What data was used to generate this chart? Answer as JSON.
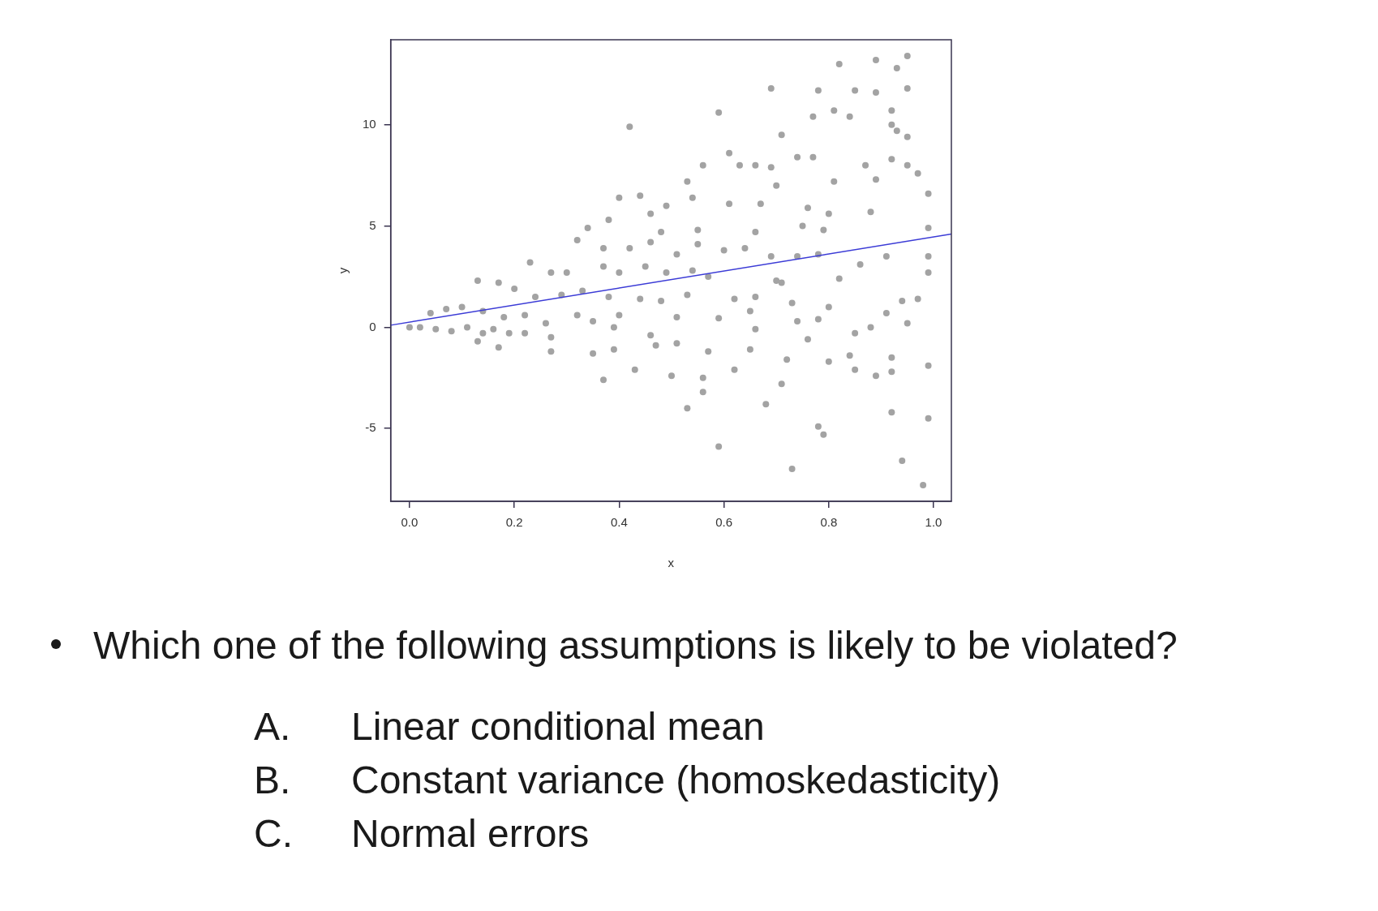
{
  "chart_data": {
    "type": "scatter",
    "xlabel": "x",
    "ylabel": "y",
    "xlim": [
      -0.036,
      1.034
    ],
    "ylim": [
      -8.6,
      14.2
    ],
    "xticks": [
      {
        "value": 0,
        "label": "0.0"
      },
      0.2,
      0.4,
      0.6,
      0.8,
      {
        "value": 1,
        "label": "1.0"
      }
    ],
    "yticks": [
      -5,
      0,
      5,
      10
    ],
    "annotations": [
      "Which one of the following assumptions is likely to be violated?",
      "A.\tLinear conditional mean",
      "B.\tConstant variance (homoskedasticity)",
      "C.\tNormal errors"
    ],
    "series": [
      {
        "color": "#a3a3a3",
        "marker": "circle",
        "x": [
          0.42,
          0.59,
          0.69,
          0.82,
          0.89,
          0.95,
          0.93,
          0.78,
          0.85,
          0.89,
          0.95,
          0.81,
          0.84,
          0.92,
          0.71,
          0.77,
          0.92,
          0.93,
          0.95,
          0.61,
          0.56,
          0.63,
          0.66,
          0.69,
          0.74,
          0.77,
          0.87,
          0.92,
          0.95,
          0.97,
          0.53,
          0.7,
          0.81,
          0.89,
          0.99,
          0.4,
          0.44,
          0.49,
          0.54,
          0.61,
          0.67,
          0.76,
          0.8,
          0.88,
          0.34,
          0.38,
          0.46,
          0.48,
          0.55,
          0.66,
          0.75,
          0.79,
          0.99,
          0.32,
          0.37,
          0.42,
          0.46,
          0.51,
          0.55,
          0.6,
          0.64,
          0.69,
          0.74,
          0.78,
          0.86,
          0.91,
          0.99,
          0.23,
          0.27,
          0.3,
          0.37,
          0.4,
          0.45,
          0.49,
          0.54,
          0.57,
          0.7,
          0.71,
          0.82,
          0.99,
          0.13,
          0.17,
          0.2,
          0.24,
          0.29,
          0.33,
          0.38,
          0.44,
          0.48,
          0.53,
          0.62,
          0.66,
          0.73,
          0.8,
          0.94,
          0.97,
          0.04,
          0.07,
          0.1,
          0.14,
          0.18,
          0.22,
          0.26,
          0.32,
          0.35,
          0.4,
          0.51,
          0.59,
          0.65,
          0.74,
          0.78,
          0.91,
          0.95,
          0.0,
          0.02,
          0.05,
          0.08,
          0.11,
          0.14,
          0.16,
          0.19,
          0.22,
          0.27,
          0.39,
          0.46,
          0.66,
          0.85,
          0.88,
          0.13,
          0.17,
          0.27,
          0.35,
          0.39,
          0.47,
          0.51,
          0.57,
          0.65,
          0.72,
          0.76,
          0.84,
          0.92,
          0.99,
          0.37,
          0.43,
          0.5,
          0.56,
          0.62,
          0.71,
          0.8,
          0.85,
          0.89,
          0.92,
          0.53,
          0.56,
          0.68,
          0.92,
          0.99,
          0.78,
          0.79,
          0.59,
          0.73,
          0.94,
          0.98
        ],
        "values": [
          9.9,
          10.6,
          11.8,
          13.0,
          13.2,
          13.4,
          12.8,
          11.7,
          11.7,
          11.6,
          11.8,
          10.7,
          10.4,
          10.7,
          9.5,
          10.4,
          10.0,
          9.7,
          9.4,
          8.6,
          8.0,
          8.0,
          8.0,
          7.9,
          8.4,
          8.4,
          8.0,
          8.3,
          8.0,
          7.6,
          7.2,
          7.0,
          7.2,
          7.3,
          6.6,
          6.4,
          6.5,
          6.0,
          6.4,
          6.1,
          6.1,
          5.9,
          5.6,
          5.7,
          4.9,
          5.3,
          5.6,
          4.7,
          4.8,
          4.7,
          5.0,
          4.8,
          4.9,
          4.3,
          3.9,
          3.9,
          4.2,
          3.6,
          4.1,
          3.8,
          3.9,
          3.5,
          3.5,
          3.6,
          3.1,
          3.5,
          3.5,
          3.2,
          2.7,
          2.7,
          3.0,
          2.7,
          3.0,
          2.7,
          2.8,
          2.5,
          2.3,
          2.2,
          2.4,
          2.7,
          2.3,
          2.2,
          1.9,
          1.5,
          1.6,
          1.8,
          1.5,
          1.4,
          1.3,
          1.6,
          1.4,
          1.5,
          1.2,
          1.0,
          1.3,
          1.4,
          0.7,
          0.9,
          1.0,
          0.8,
          0.5,
          0.6,
          0.2,
          0.6,
          0.3,
          0.6,
          0.5,
          0.45,
          0.8,
          0.3,
          0.4,
          0.7,
          0.2,
          0.0,
          0.0,
          -0.1,
          -0.2,
          0.0,
          -0.3,
          -0.1,
          -0.3,
          -0.3,
          -0.5,
          0.0,
          -0.4,
          -0.1,
          -0.3,
          0.0,
          -0.7,
          -1.0,
          -1.2,
          -1.3,
          -1.1,
          -0.9,
          -0.8,
          -1.2,
          -1.1,
          -1.6,
          -0.6,
          -1.4,
          -1.5,
          -1.9,
          -2.6,
          -2.1,
          -2.4,
          -2.5,
          -2.1,
          -2.8,
          -1.7,
          -2.1,
          -2.4,
          -2.2,
          -4.0,
          -3.2,
          -3.8,
          -4.2,
          -4.5,
          -4.9,
          -5.3,
          -5.9,
          -7.0,
          -6.6,
          -7.8
        ]
      },
      {
        "type": "line",
        "marker": "none",
        "color": "#3b3bd6",
        "x": [
          -0.036,
          1.034
        ],
        "values": [
          0.1,
          4.6
        ]
      }
    ]
  }
}
